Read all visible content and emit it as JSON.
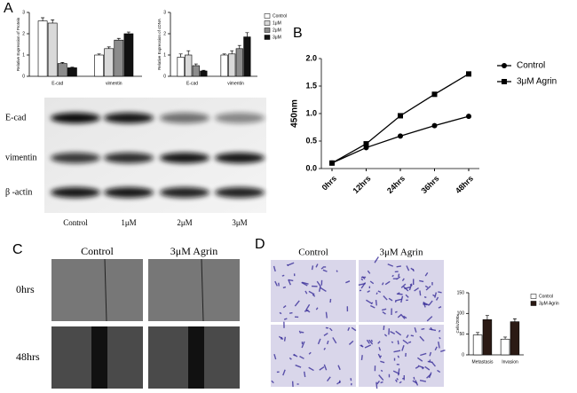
{
  "chart_data": [
    {
      "type": "bar",
      "ylabel": "Relative Expression of Protein",
      "categories": [
        "E-cad",
        "vimentin"
      ],
      "ylim": [
        0,
        3
      ],
      "yticks": [
        0,
        1,
        2,
        3
      ],
      "series": [
        {
          "color": "#ffffff",
          "values": [
            2.6,
            1.0
          ],
          "errors": [
            0.15,
            0.05
          ]
        },
        {
          "color": "#d9d9d9",
          "values": [
            2.5,
            1.3
          ],
          "errors": [
            0.15,
            0.08
          ]
        },
        {
          "color": "#8c8c8c",
          "values": [
            0.6,
            1.7
          ],
          "errors": [
            0.05,
            0.08
          ]
        },
        {
          "color": "#111111",
          "values": [
            0.4,
            2.0
          ],
          "errors": [
            0.03,
            0.08
          ]
        }
      ]
    },
    {
      "type": "bar",
      "ylabel": "Relative Expression of cDNA",
      "categories": [
        "E-cad",
        "vimentin"
      ],
      "ylim": [
        0,
        3
      ],
      "yticks": [
        0,
        1,
        2,
        3
      ],
      "legend": "right",
      "series": [
        {
          "name": "Control",
          "color": "#ffffff",
          "values": [
            0.9,
            1.0
          ],
          "errors": [
            0.15,
            0.05
          ]
        },
        {
          "name": "1μM",
          "color": "#d9d9d9",
          "values": [
            1.0,
            1.05
          ],
          "errors": [
            0.2,
            0.15
          ]
        },
        {
          "name": "2μM",
          "color": "#8c8c8c",
          "values": [
            0.5,
            1.3
          ],
          "errors": [
            0.08,
            0.15
          ]
        },
        {
          "name": "3μM",
          "color": "#111111",
          "values": [
            0.25,
            1.85
          ],
          "errors": [
            0.03,
            0.2
          ]
        }
      ]
    },
    {
      "type": "line",
      "ylabel": "450nm",
      "categories": [
        "0hrs",
        "12hrs",
        "24hrs",
        "36hrs",
        "48hrs"
      ],
      "ylim": [
        0,
        2.0
      ],
      "yticks": [
        {
          "value": 0,
          "label": "0.0"
        },
        0.5,
        {
          "value": 1,
          "label": "1.0"
        },
        1.5,
        {
          "value": 2,
          "label": "2.0"
        }
      ],
      "legend": "right",
      "series": [
        {
          "name": "Control",
          "color": "#000000",
          "marker": "circle",
          "values": [
            0.1,
            0.38,
            0.59,
            0.78,
            0.95
          ]
        },
        {
          "name": "3μM Agrin",
          "color": "#000000",
          "marker": "square",
          "values": [
            0.1,
            0.45,
            0.96,
            1.35,
            1.72
          ]
        }
      ]
    },
    {
      "type": "bar",
      "ylabel": "Cells/200x",
      "categories": [
        "Metastasis",
        "Invasion"
      ],
      "ylim": [
        0,
        150
      ],
      "yticks": [
        0,
        50,
        100,
        150
      ],
      "legend": "right",
      "series": [
        {
          "name": "Control",
          "color": "#ffffff",
          "values": [
            48,
            38
          ],
          "errors": [
            6,
            5
          ]
        },
        {
          "name": "3μM Agrin",
          "color": "#2b1a14",
          "values": [
            85,
            80
          ],
          "errors": [
            10,
            7
          ]
        }
      ]
    }
  ],
  "figure": {
    "panels": [
      "A",
      "B",
      "C",
      "D"
    ],
    "blot": {
      "rows": [
        "E-cad",
        "vimentin",
        "β -actin"
      ],
      "columns": [
        "Control",
        "1μM",
        "2μM",
        "3μM"
      ]
    },
    "scratch": {
      "columns": [
        "Control",
        "3μM Agrin"
      ],
      "rows": [
        "0hrs",
        "48hrs"
      ]
    },
    "transwell": {
      "columns": [
        "Control",
        "3μM Agrin"
      ]
    }
  }
}
